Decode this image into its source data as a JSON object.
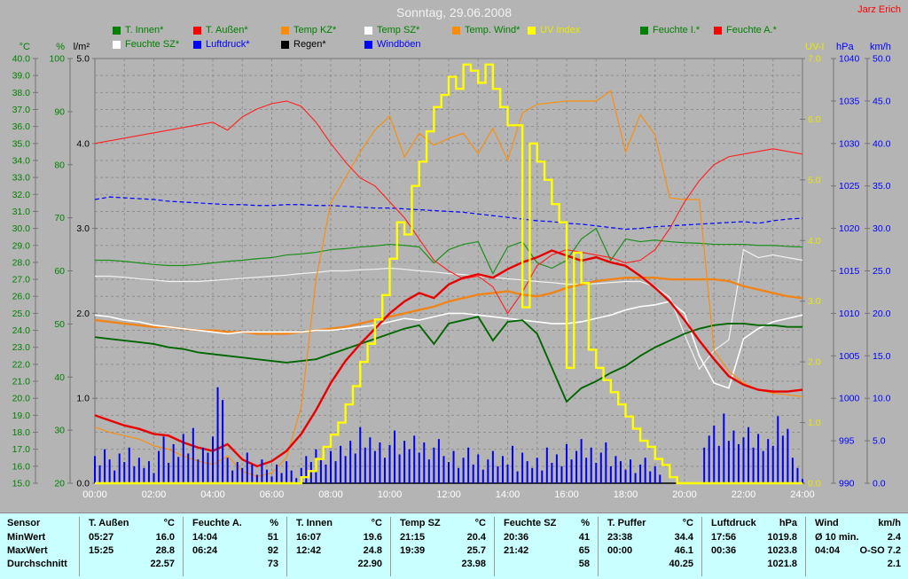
{
  "header": {
    "title": "Sonntag, 29.06.2008",
    "author": "Jarz Erich"
  },
  "legend": {
    "row1": [
      {
        "label": "T. Innen*",
        "swatch": "#008000",
        "text_color": "#008000"
      },
      {
        "label": "T. Außen*",
        "swatch": "#ff0000",
        "text_color": "#008000"
      },
      {
        "label": "Temp KZ*",
        "swatch": "#ff8c00",
        "text_color": "#008000"
      },
      {
        "label": "Temp SZ*",
        "swatch": "#ffffff",
        "text_color": "#008000"
      },
      {
        "label": "Temp. Wind*",
        "swatch": "#ff8c00",
        "text_color": "#008000"
      },
      {
        "label": "UV Index",
        "swatch": "#ffff00",
        "text_color": "#e8e800"
      },
      {
        "label": "Feuchte I.*",
        "swatch": "#008000",
        "text_color": "#008000"
      },
      {
        "label": "Feuchte A.*",
        "swatch": "#ff0000",
        "text_color": "#008000"
      }
    ],
    "row2": [
      {
        "label": "Feuchte SZ*",
        "swatch": "#ffffff",
        "text_color": "#008000"
      },
      {
        "label": "Luftdruck*",
        "swatch": "#0000ff",
        "text_color": "#0000ff"
      },
      {
        "label": "Regen*",
        "swatch": "#000000",
        "text_color": "#000000"
      },
      {
        "label": "Windböen",
        "swatch": "#0000ff",
        "text_color": "#0000ff"
      }
    ]
  },
  "axes_panel": {
    "left": [
      {
        "unit": "°C",
        "color": "#008000",
        "min": 15,
        "max": 40,
        "step": 1,
        "decimals": 1
      },
      {
        "unit": "%",
        "color": "#008000",
        "min": 20,
        "max": 100,
        "step": 10,
        "decimals": 0
      },
      {
        "unit": "l/m²",
        "color": "#000000",
        "min": 0,
        "max": 5,
        "step": 1,
        "decimals": 1
      }
    ],
    "right": [
      {
        "unit": "UV-I",
        "color": "#e8e800",
        "min": 0,
        "max": 7,
        "step": 1,
        "decimals": 1
      },
      {
        "unit": "hPa",
        "color": "#0000ff",
        "min": 990,
        "max": 1040,
        "step": 5,
        "decimals": 0
      },
      {
        "unit": "km/h",
        "color": "#0000ff",
        "min": 0,
        "max": 50,
        "step": 5,
        "decimals": 1
      }
    ]
  },
  "x_axis": {
    "labels": [
      "00:00",
      "02:00",
      "04:00",
      "06:00",
      "08:00",
      "10:00",
      "12:00",
      "14:00",
      "16:00",
      "18:00",
      "20:00",
      "22:00",
      "24:00"
    ],
    "color": "#ffffff"
  },
  "chart_data": {
    "type": "line",
    "title": "Sonntag, 29.06.2008",
    "x_unit": "hours",
    "x_range": [
      0,
      24
    ],
    "grid": "dashed gray, 1 h vertical / 1 unit horizontal",
    "axes": {
      "°C": {
        "min": 15,
        "max": 40
      },
      "%": {
        "min": 20,
        "max": 100
      },
      "l/m²": {
        "min": 0,
        "max": 5
      },
      "UV-I": {
        "min": 0,
        "max": 7
      },
      "hPa": {
        "min": 990,
        "max": 1040
      },
      "km/h": {
        "min": 0,
        "max": 50
      }
    },
    "series": [
      {
        "key": "luftdruck",
        "name": "Luftdruck*",
        "unit": "hPa",
        "color": "#0000ff",
        "style": "dash",
        "width": 1.2,
        "interval_min": 30,
        "values": [
          1023.4,
          1023.7,
          1023.6,
          1023.5,
          1023.4,
          1023.2,
          1023.1,
          1023.0,
          1022.9,
          1022.8,
          1022.8,
          1022.7,
          1022.7,
          1022.8,
          1022.8,
          1022.7,
          1022.7,
          1022.6,
          1022.5,
          1022.4,
          1022.4,
          1022.3,
          1022.2,
          1022.1,
          1022.0,
          1021.9,
          1021.7,
          1021.5,
          1021.3,
          1021.1,
          1020.9,
          1020.8,
          1020.6,
          1020.5,
          1020.3,
          1020.1,
          1019.9,
          1020.0,
          1020.2,
          1020.3,
          1020.4,
          1020.5,
          1020.6,
          1020.7,
          1020.8,
          1020.6,
          1020.9,
          1021.1,
          1021.2
        ]
      },
      {
        "key": "regen",
        "name": "Regen*",
        "unit": "l/m²",
        "color": "#000000",
        "style": "line",
        "width": 1.4,
        "interval_min": 30,
        "values": [
          0,
          0,
          0,
          0,
          0,
          0,
          0,
          0,
          0,
          0,
          0,
          0,
          0,
          0,
          0,
          0,
          0,
          0,
          0,
          0,
          0,
          0,
          0,
          0,
          0,
          0,
          0,
          0,
          0,
          0,
          0,
          0,
          0,
          0,
          0,
          0,
          0,
          0,
          0,
          0,
          0,
          0,
          0,
          0,
          0,
          0,
          0,
          0,
          0
        ]
      },
      {
        "key": "feuchte_sz",
        "name": "Feuchte SZ*",
        "unit": "%",
        "color": "#f2f2f2",
        "style": "line",
        "width": 1.2,
        "interval_min": 30,
        "values": [
          59,
          59,
          58.8,
          58.5,
          58.3,
          58,
          58,
          58,
          58.2,
          58.4,
          58.6,
          58.8,
          59,
          59.2,
          59.5,
          59.7,
          60,
          60,
          60.2,
          60.3,
          60.5,
          60.3,
          60,
          59.8,
          59.5,
          59.3,
          59,
          58.8,
          58.5,
          58.3,
          58,
          57.8,
          57.5,
          57.5,
          57.6,
          57.8,
          58,
          58,
          57,
          55,
          48,
          41.5,
          45,
          47,
          64,
          62.5,
          63,
          62.5,
          62
        ]
      },
      {
        "key": "feuchte_i",
        "name": "Feuchte I.*",
        "unit": "%",
        "color": "#1d8f1d",
        "style": "line",
        "width": 1.2,
        "interval_min": 30,
        "values": [
          62,
          62,
          61.8,
          61.5,
          61.2,
          61,
          61,
          61.2,
          61.5,
          61.8,
          62,
          62.3,
          62.5,
          63,
          63.2,
          63.5,
          64,
          64.2,
          64.5,
          64.7,
          65,
          64.8,
          64.5,
          61.5,
          64,
          65,
          65.5,
          59.5,
          64.5,
          65.5,
          61.5,
          60.5,
          62,
          66,
          68,
          62,
          66,
          65.5,
          65.8,
          65.5,
          65.3,
          65.2,
          65,
          65,
          65,
          64.8,
          64.8,
          64.6,
          64.5
        ]
      },
      {
        "key": "temp_kz",
        "name": "Temp KZ*",
        "unit": "°C",
        "color": "#f08418",
        "style": "line",
        "width": 2.4,
        "interval_min": 30,
        "values": [
          24.6,
          24.5,
          24.4,
          24.3,
          24.2,
          24.2,
          24.1,
          24.0,
          24.0,
          23.9,
          23.9,
          23.8,
          23.8,
          23.8,
          23.9,
          24.0,
          24.1,
          24.2,
          24.4,
          24.6,
          24.8,
          25.0,
          25.2,
          25.4,
          25.7,
          25.9,
          26.1,
          26.2,
          26.3,
          26.1,
          26.0,
          26.2,
          26.5,
          26.7,
          26.9,
          27.0,
          27.1,
          27.1,
          27.1,
          27.0,
          27.0,
          27.0,
          27.0,
          26.9,
          26.6,
          26.4,
          26.2,
          26.0,
          25.9
        ]
      },
      {
        "key": "temp_sz",
        "name": "Temp SZ*",
        "unit": "°C",
        "color": "#ffffff",
        "style": "line",
        "width": 1.6,
        "interval_min": 30,
        "values": [
          24.9,
          24.8,
          24.6,
          24.5,
          24.3,
          24.2,
          24.1,
          24.0,
          23.9,
          23.8,
          23.9,
          23.9,
          23.9,
          23.9,
          23.9,
          24.0,
          24.0,
          24.1,
          24.2,
          24.3,
          24.5,
          24.7,
          24.6,
          24.8,
          25.0,
          25.0,
          24.9,
          24.8,
          24.7,
          24.6,
          24.5,
          24.4,
          24.4,
          24.5,
          24.7,
          24.9,
          25.2,
          25.4,
          25.5,
          25.7,
          25.0,
          22.5,
          20.9,
          20.6,
          23.5,
          24.1,
          24.5,
          24.7,
          24.9
        ]
      },
      {
        "key": "t_innen",
        "name": "T. Innen*",
        "unit": "°C",
        "color": "#006600",
        "style": "line",
        "width": 1.9,
        "interval_min": 30,
        "values": [
          23.6,
          23.5,
          23.4,
          23.3,
          23.2,
          23.0,
          22.9,
          22.7,
          22.6,
          22.5,
          22.4,
          22.3,
          22.2,
          22.1,
          22.2,
          22.3,
          22.6,
          22.9,
          23.2,
          23.5,
          23.8,
          24.1,
          24.3,
          23.2,
          24.4,
          24.6,
          24.8,
          23.4,
          24.5,
          24.6,
          23.8,
          21.8,
          19.8,
          20.6,
          21.0,
          21.5,
          21.9,
          22.5,
          23.0,
          23.4,
          23.8,
          24.1,
          24.3,
          24.4,
          24.4,
          24.3,
          24.3,
          24.2,
          24.2
        ]
      },
      {
        "key": "temp_wind",
        "name": "Temp. Wind*",
        "unit": "°C",
        "color": "#ff8c00",
        "style": "line",
        "width": 1.1,
        "interval_min": 30,
        "values": [
          18.3,
          18.0,
          17.8,
          17.6,
          17.2,
          17.0,
          16.6,
          16.3,
          16.1,
          16.6,
          15.7,
          15.4,
          15.6,
          16.5,
          19.5,
          27.0,
          31.5,
          33.0,
          34.5,
          35.8,
          36.6,
          34.2,
          35.6,
          34.9,
          35.3,
          35.6,
          34.4,
          35.9,
          34.0,
          36.8,
          37.3,
          37.4,
          37.5,
          37.5,
          37.5,
          38.1,
          34.5,
          36.7,
          35.5,
          31.8,
          31.7,
          31.7,
          22.8,
          21.6,
          20.9,
          20.5,
          20.3,
          20.2,
          20.1
        ]
      },
      {
        "key": "feuchte_a",
        "name": "Feuchte A.*",
        "unit": "%",
        "color": "#ff2020",
        "style": "line",
        "width": 1.1,
        "interval_min": 30,
        "values": [
          84,
          84.5,
          85,
          85.5,
          86,
          86.5,
          87,
          87.5,
          88,
          86.5,
          89,
          90.5,
          91.5,
          92,
          91,
          88,
          84,
          80.5,
          77.5,
          76,
          73,
          70,
          66,
          62,
          60,
          58.5,
          59,
          57,
          52,
          56,
          61,
          63,
          64,
          63.5,
          63,
          62.5,
          61.5,
          62,
          64,
          68,
          73,
          77,
          80,
          81.5,
          82,
          82.5,
          83,
          82.5,
          82
        ]
      },
      {
        "key": "t_aussen",
        "name": "T. Außen*",
        "unit": "°C",
        "color": "#e80000",
        "style": "line",
        "width": 2.4,
        "interval_min": 30,
        "values": [
          19.0,
          18.7,
          18.4,
          18.2,
          17.9,
          17.8,
          17.4,
          17.1,
          16.9,
          17.3,
          16.4,
          16.0,
          16.3,
          16.9,
          17.9,
          19.3,
          20.9,
          22.2,
          23.2,
          24.1,
          25.0,
          25.7,
          26.2,
          25.9,
          26.7,
          27.1,
          27.3,
          27.1,
          27.6,
          28.0,
          28.3,
          28.7,
          28.4,
          28.1,
          28.3,
          28.0,
          27.8,
          27.2,
          26.5,
          25.7,
          24.6,
          23.4,
          22.3,
          21.3,
          20.8,
          20.5,
          20.4,
          20.4,
          20.5
        ]
      },
      {
        "key": "windboeen",
        "name": "Windböen",
        "unit": "km/h",
        "color": "#0000ee",
        "style": "bars",
        "width": 2,
        "interval_min": 10,
        "values": [
          3.2,
          2.1,
          4.0,
          2.8,
          1.5,
          3.5,
          2.5,
          4.2,
          2.0,
          3.0,
          1.8,
          2.6,
          1.2,
          3.8,
          5.5,
          2.4,
          4.6,
          3.1,
          5.8,
          3.5,
          6.5,
          2.8,
          4.2,
          3.6,
          5.5,
          11.3,
          9.8,
          3.0,
          1.5,
          2.5,
          1.8,
          3.6,
          2.2,
          1.0,
          2.8,
          1.6,
          0.8,
          2.2,
          1.2,
          2.6,
          1.5,
          0.6,
          1.8,
          3.2,
          2.5,
          4.0,
          3.0,
          2.2,
          3.8,
          2.6,
          4.4,
          3.2,
          5.0,
          3.5,
          6.6,
          4.2,
          5.4,
          3.8,
          4.8,
          3.0,
          4.5,
          6.2,
          3.4,
          5.0,
          4.0,
          5.6,
          3.6,
          4.8,
          2.8,
          4.2,
          5.2,
          3.2,
          2.5,
          3.8,
          1.8,
          3.0,
          4.2,
          2.2,
          3.4,
          1.6,
          2.8,
          3.8,
          2.0,
          3.2,
          2.2,
          4.4,
          1.4,
          3.6,
          2.6,
          1.8,
          3.0,
          1.5,
          4.2,
          2.4,
          3.4,
          2.0,
          4.6,
          2.8,
          3.8,
          5.2,
          3.0,
          4.2,
          2.4,
          3.6,
          4.8,
          2.0,
          3.2,
          2.6,
          1.6,
          2.8,
          1.2,
          2.2,
          3.0,
          1.4,
          2.0,
          1.0,
          0,
          0,
          0,
          0,
          0,
          0,
          0,
          0,
          4.2,
          5.6,
          6.8,
          4.4,
          8.2,
          5.0,
          6.2,
          4.6,
          5.4,
          6.6,
          4.2,
          5.8,
          3.8,
          5.2,
          4.4,
          7.9,
          5.6,
          6.4,
          3.0,
          1.8,
          0.5
        ]
      },
      {
        "key": "uv_index",
        "name": "UV Index",
        "unit": "UV-I",
        "color": "#ffff00",
        "style": "step",
        "width": 2.4,
        "interval_min": 15,
        "values": [
          0,
          0,
          0,
          0,
          0,
          0,
          0,
          0,
          0,
          0,
          0,
          0,
          0,
          0,
          0,
          0,
          0,
          0,
          0,
          0,
          0,
          0,
          0,
          0,
          0,
          0,
          0,
          0,
          0.1,
          0.2,
          0.4,
          0.6,
          0.8,
          1.0,
          1.3,
          1.6,
          2.0,
          2.3,
          2.7,
          3.1,
          3.7,
          4.3,
          4.1,
          4.9,
          5.3,
          5.8,
          6.2,
          6.4,
          6.7,
          6.5,
          6.9,
          6.8,
          6.6,
          6.9,
          6.5,
          6.2,
          5.9,
          5.9,
          2.9,
          5.6,
          5.3,
          5.0,
          4.6,
          4.3,
          1.9,
          3.8,
          3.3,
          2.2,
          1.9,
          1.7,
          1.5,
          1.3,
          1.1,
          0.9,
          0.7,
          0.6,
          0.4,
          0.3,
          0.1,
          0,
          0,
          0,
          0,
          0,
          0,
          0,
          0,
          0,
          0,
          0,
          0,
          0,
          0,
          0,
          0,
          0,
          0
        ]
      }
    ]
  },
  "table": {
    "row_labels": [
      "Sensor",
      "MinWert",
      "MaxWert",
      "Durchschnitt"
    ],
    "columns": [
      {
        "name": "T. Außen",
        "unit": "°C",
        "min_time": "05:27",
        "min": "16.0",
        "max_time": "15:25",
        "max": "28.8",
        "avg": "22.57"
      },
      {
        "name": "Feuchte A.",
        "unit": "%",
        "min_time": "14:04",
        "min": "51",
        "max_time": "06:24",
        "max": "92",
        "avg": "73"
      },
      {
        "name": "T. Innen",
        "unit": "°C",
        "min_time": "16:07",
        "min": "19.6",
        "max_time": "12:42",
        "max": "24.8",
        "avg": "22.90"
      },
      {
        "name": "Temp SZ",
        "unit": "°C",
        "min_time": "21:15",
        "min": "20.4",
        "max_time": "19:39",
        "max": "25.7",
        "avg": "23.98"
      },
      {
        "name": "Feuchte SZ",
        "unit": "%",
        "min_time": "20:36",
        "min": "41",
        "max_time": "21:42",
        "max": "65",
        "avg": "58"
      },
      {
        "name": "T. Puffer",
        "unit": "°C",
        "min_time": "23:38",
        "min": "34.4",
        "max_time": "00:00",
        "max": "46.1",
        "avg": "40.25"
      },
      {
        "name": "Luftdruck",
        "unit": "hPa",
        "min_time": "17:56",
        "min": "1019.8",
        "max_time": "00:36",
        "max": "1023.8",
        "avg": "1021.8"
      },
      {
        "name": "Wind",
        "unit": "km/h",
        "min_time": "Ø 10 min.",
        "min": "2.4",
        "max_time": "04:04",
        "max": "O-SO 7.2",
        "avg": "2.1"
      }
    ]
  },
  "colors": {
    "window_bg": "#b4b4b4",
    "grid": "#8f8f8f",
    "axis_line": "#757575",
    "table_bg": "#c9ffff",
    "x_label": "#ffffff",
    "title": "#f2f2f2",
    "author": "#ff0000"
  }
}
